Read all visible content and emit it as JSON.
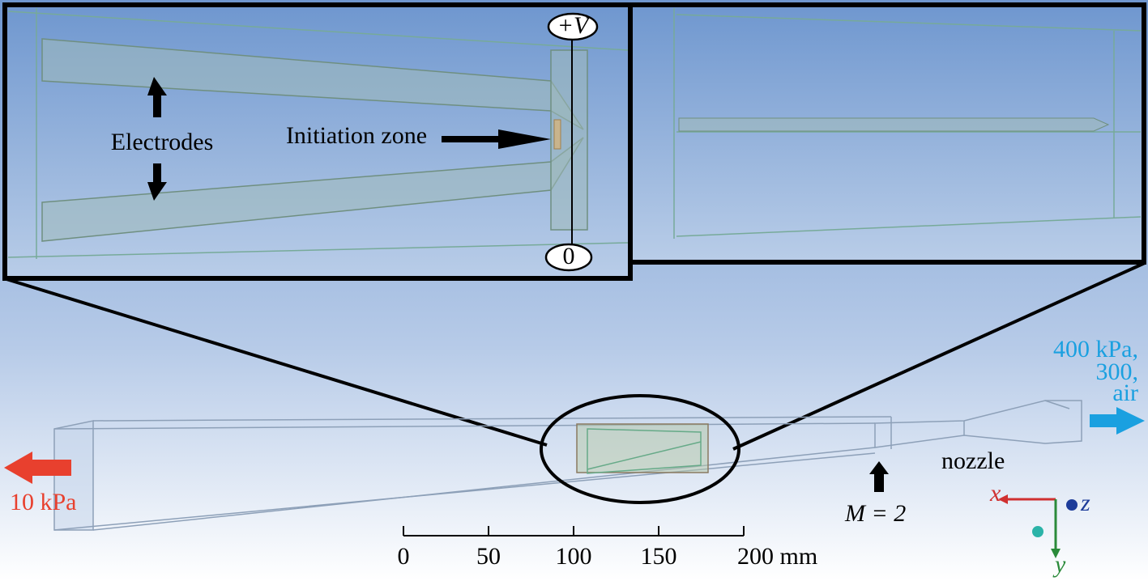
{
  "inset_left": {
    "top_terminal": "+V",
    "bottom_terminal": "0",
    "electrodes": "Electrodes",
    "initiation_zone": "Initiation zone"
  },
  "inlet": {
    "lines": [
      "400 kPa,",
      "300,",
      "air"
    ]
  },
  "outlet": "10 kPa",
  "nozzle": "nozzle",
  "mach": "M = 2",
  "axes": {
    "x": "x",
    "y": "y",
    "z": "z"
  },
  "scale_bar": {
    "ticks": [
      0,
      50,
      100,
      150,
      {
        "value": 200,
        "label": "200 mm"
      }
    ]
  }
}
